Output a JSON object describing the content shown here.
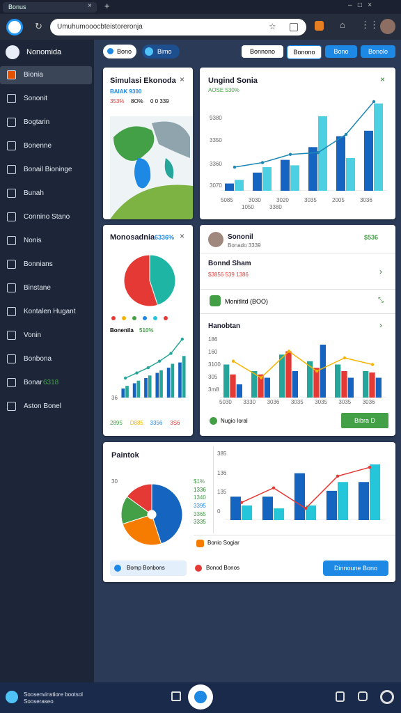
{
  "browser": {
    "tab": "Bonus",
    "url": "Umuhumooocbteistoreronja"
  },
  "sidebar": {
    "title": "Nonomida",
    "items": [
      "Bionia",
      "Sononit",
      "Bogtarin",
      "Bonenne",
      "Bonail Bioninge",
      "Bunah",
      "Connino Stano",
      "Nonis",
      "Bonnians",
      "Binstane",
      "Kontalen Hugant",
      "Vonin",
      "Bonbona",
      "Bonar",
      "Aston Bonel"
    ],
    "item_badge": "6318"
  },
  "toolbar": {
    "pills": [
      "Bono",
      "Bimo"
    ],
    "buttons": [
      "Bonnono",
      "Bonono",
      "Bono",
      "Bonolo"
    ]
  },
  "card1": {
    "title": "Simulasi Ekonoda",
    "stat": "BAIAK 9300",
    "stats": [
      "353%",
      "8O%",
      "0 0 339"
    ]
  },
  "card2": {
    "title": "Ungind Sonia",
    "stat": "AOSE 530%",
    "yaxis": [
      "9380",
      "3350",
      "3360",
      "3070"
    ],
    "xaxis": [
      "5085",
      "3030",
      "3020",
      "3035",
      "2005",
      "3036"
    ],
    "xaxis2": [
      "1050",
      "3380"
    ],
    "chart": {
      "series": [
        {
          "color": "#1565c0",
          "values": [
            8,
            20,
            34,
            48,
            60,
            66
          ]
        },
        {
          "color": "#4dd0e1",
          "values": [
            12,
            26,
            28,
            82,
            36,
            96
          ]
        }
      ],
      "line": {
        "color": "#1e88b5",
        "values": [
          26,
          31,
          40,
          42,
          62,
          98
        ]
      }
    }
  },
  "card3": {
    "title": "Monosadnia",
    "badge": "6336%",
    "subtitle": "Bonenila",
    "sub_value": "510%",
    "yaxis": "36",
    "legend": [
      "2895",
      "D885",
      "3356",
      "3S6"
    ],
    "pie": {
      "colors": [
        "#1fb5a5",
        "#e53935"
      ],
      "values": [
        45,
        55
      ]
    },
    "chart": {
      "series": [
        {
          "color": "#1565c0",
          "values": [
            14,
            22,
            30,
            38,
            46,
            54
          ]
        },
        {
          "color": "#26a69a",
          "values": [
            18,
            26,
            34,
            42,
            52,
            64
          ]
        }
      ],
      "line": {
        "color": "#26a69a",
        "values": [
          30,
          38,
          46,
          56,
          68,
          90
        ]
      }
    }
  },
  "card4": {
    "profile_name": "Sononil",
    "profile_sub": "Bonado 3339",
    "profile_value": "$536",
    "row2_title": "Bonnd Sham",
    "row2_stats": "$3856 539 1386",
    "row3": "Monitlitd (BOO)",
    "chart_title": "Hanobtan",
    "yaxis": [
      "186",
      "160",
      "3100",
      "305",
      "3m8"
    ],
    "xaxis": [
      "5030",
      "3330",
      "3036",
      "3035",
      "3035",
      "3035",
      "3036"
    ],
    "footer_label": "Nugio Ioral",
    "button": "Bibra D",
    "chart": {
      "series": [
        {
          "color": "#26a69a",
          "values": [
            50,
            40,
            65,
            55,
            50,
            40
          ]
        },
        {
          "color": "#e53935",
          "values": [
            35,
            35,
            70,
            45,
            40,
            38
          ]
        },
        {
          "color": "#1565c0",
          "values": [
            20,
            30,
            40,
            80,
            30,
            30
          ]
        }
      ],
      "line": {
        "color": "#f4b400",
        "values": [
          55,
          30,
          70,
          40,
          60,
          50
        ]
      }
    }
  },
  "card5": {
    "title": "Paintok",
    "pie_label": "30",
    "legend": [
      "$1%",
      "1336",
      "1340",
      "3395",
      "3365",
      "3335"
    ],
    "yaxis": [
      "385",
      "136",
      "135",
      "0"
    ],
    "row": "Bonio Sogiar",
    "pills": [
      "Bomp Bonbons",
      "Bonod Bonos"
    ],
    "button": "Dinnoune Bono",
    "pie": {
      "colors": [
        "#1565c0",
        "#f57c00",
        "#43a047",
        "#e53935"
      ],
      "values": [
        45,
        25,
        15,
        15
      ]
    },
    "chart": {
      "series": [
        {
          "color": "#1565c0",
          "values": [
            40,
            40,
            80,
            50,
            65
          ]
        },
        {
          "color": "#26c6da",
          "values": [
            25,
            20,
            25,
            65,
            95
          ]
        }
      ],
      "line": {
        "color": "#e53935",
        "values": [
          30,
          55,
          20,
          75,
          90
        ]
      }
    }
  },
  "footer": {
    "text": [
      "Soosenvinstiore bootsol",
      "Sooseraseo"
    ]
  }
}
